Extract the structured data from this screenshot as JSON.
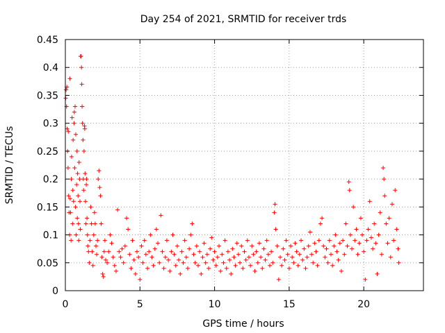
{
  "chart_data": {
    "type": "scatter",
    "title": "Day 254 of 2021, SRMTID for receiver trds",
    "xlabel": "GPS time / hours",
    "ylabel": "SRMTID / TECUs",
    "xlim": [
      0,
      24
    ],
    "ylim": [
      0,
      0.45
    ],
    "x_ticks": [
      0,
      5,
      10,
      15,
      20
    ],
    "x_tick_labels": [
      "0",
      "5",
      "10",
      "15",
      "20"
    ],
    "y_ticks": [
      0,
      0.05,
      0.1,
      0.15,
      0.2,
      0.25,
      0.3,
      0.35,
      0.4,
      0.45
    ],
    "y_tick_labels": [
      "0",
      "0.05",
      "0.1",
      "0.15",
      "0.2",
      "0.25",
      "0.3",
      "0.35",
      "0.4",
      "0.45"
    ],
    "grid": true,
    "marker": "+",
    "color": "#ff0000",
    "series": [
      {
        "name": "SRMTID",
        "points": [
          [
            0.02,
            0.345
          ],
          [
            0.05,
            0.36
          ],
          [
            0.08,
            0.33
          ],
          [
            0.1,
            0.365
          ],
          [
            0.12,
            0.29
          ],
          [
            0.15,
            0.25
          ],
          [
            0.18,
            0.22
          ],
          [
            0.2,
            0.285
          ],
          [
            0.22,
            0.17
          ],
          [
            0.25,
            0.14
          ],
          [
            0.28,
            0.1
          ],
          [
            0.3,
            0.38
          ],
          [
            0.32,
            0.165
          ],
          [
            0.35,
            0.14
          ],
          [
            0.38,
            0.09
          ],
          [
            0.4,
            0.2
          ],
          [
            0.42,
            0.24
          ],
          [
            0.45,
            0.31
          ],
          [
            0.48,
            0.12
          ],
          [
            0.5,
            0.18
          ],
          [
            0.52,
            0.27
          ],
          [
            0.55,
            0.16
          ],
          [
            0.58,
            0.3
          ],
          [
            0.6,
            0.32
          ],
          [
            0.62,
            0.22
          ],
          [
            0.65,
            0.33
          ],
          [
            0.68,
            0.15
          ],
          [
            0.7,
            0.28
          ],
          [
            0.72,
            0.1
          ],
          [
            0.75,
            0.19
          ],
          [
            0.78,
            0.25
          ],
          [
            0.8,
            0.13
          ],
          [
            0.82,
            0.21
          ],
          [
            0.85,
            0.17
          ],
          [
            0.88,
            0.12
          ],
          [
            0.9,
            0.09
          ],
          [
            0.92,
            0.23
          ],
          [
            0.95,
            0.2
          ],
          [
            0.98,
            0.16
          ],
          [
            1.0,
            0.11
          ],
          [
            1.02,
            0.42
          ],
          [
            1.05,
            0.42
          ],
          [
            1.08,
            0.4
          ],
          [
            1.1,
            0.37
          ],
          [
            1.12,
            0.33
          ],
          [
            1.15,
            0.3
          ],
          [
            1.18,
            0.27
          ],
          [
            1.2,
            0.2
          ],
          [
            1.22,
            0.18
          ],
          [
            1.25,
            0.25
          ],
          [
            1.28,
            0.295
          ],
          [
            1.3,
            0.29
          ],
          [
            1.32,
            0.21
          ],
          [
            1.35,
            0.16
          ],
          [
            1.38,
            0.12
          ],
          [
            1.4,
            0.19
          ],
          [
            1.42,
            0.2
          ],
          [
            1.45,
            0.13
          ],
          [
            1.48,
            0.1
          ],
          [
            1.5,
            0.08
          ],
          [
            1.55,
            0.07
          ],
          [
            1.6,
            0.05
          ],
          [
            1.65,
            0.09
          ],
          [
            1.7,
            0.15
          ],
          [
            1.75,
            0.12
          ],
          [
            1.8,
            0.07
          ],
          [
            1.85,
            0.045
          ],
          [
            1.9,
            0.1
          ],
          [
            1.95,
            0.14
          ],
          [
            2.0,
            0.12
          ],
          [
            2.05,
            0.08
          ],
          [
            2.1,
            0.065
          ],
          [
            2.15,
            0.09
          ],
          [
            2.2,
            0.2
          ],
          [
            2.25,
            0.215
          ],
          [
            2.3,
            0.185
          ],
          [
            2.35,
            0.17
          ],
          [
            2.4,
            0.12
          ],
          [
            2.45,
            0.06
          ],
          [
            2.5,
            0.03
          ],
          [
            2.55,
            0.025
          ],
          [
            2.6,
            0.07
          ],
          [
            2.65,
            0.09
          ],
          [
            2.7,
            0.055
          ],
          [
            2.8,
            0.05
          ],
          [
            2.9,
            0.07
          ],
          [
            3.0,
            0.1
          ],
          [
            3.1,
            0.085
          ],
          [
            3.2,
            0.06
          ],
          [
            3.3,
            0.045
          ],
          [
            3.4,
            0.035
          ],
          [
            3.5,
            0.145
          ],
          [
            3.6,
            0.07
          ],
          [
            3.7,
            0.06
          ],
          [
            3.8,
            0.075
          ],
          [
            3.9,
            0.05
          ],
          [
            4.0,
            0.08
          ],
          [
            4.1,
            0.13
          ],
          [
            4.2,
            0.11
          ],
          [
            4.3,
            0.065
          ],
          [
            4.4,
            0.04
          ],
          [
            4.5,
            0.09
          ],
          [
            4.6,
            0.055
          ],
          [
            4.7,
            0.03
          ],
          [
            4.8,
            0.07
          ],
          [
            4.9,
            0.06
          ],
          [
            5.0,
            0.02
          ],
          [
            5.1,
            0.08
          ],
          [
            5.2,
            0.05
          ],
          [
            5.3,
            0.09
          ],
          [
            5.4,
            0.065
          ],
          [
            5.5,
            0.04
          ],
          [
            5.6,
            0.07
          ],
          [
            5.7,
            0.1
          ],
          [
            5.8,
            0.06
          ],
          [
            5.9,
            0.045
          ],
          [
            6.0,
            0.075
          ],
          [
            6.1,
            0.11
          ],
          [
            6.2,
            0.085
          ],
          [
            6.3,
            0.05
          ],
          [
            6.4,
            0.135
          ],
          [
            6.5,
            0.07
          ],
          [
            6.6,
            0.04
          ],
          [
            6.7,
            0.06
          ],
          [
            6.8,
            0.09
          ],
          [
            6.9,
            0.055
          ],
          [
            7.0,
            0.035
          ],
          [
            7.1,
            0.07
          ],
          [
            7.2,
            0.1
          ],
          [
            7.3,
            0.065
          ],
          [
            7.4,
            0.045
          ],
          [
            7.5,
            0.08
          ],
          [
            7.6,
            0.055
          ],
          [
            7.7,
            0.03
          ],
          [
            7.8,
            0.07
          ],
          [
            7.9,
            0.05
          ],
          [
            8.0,
            0.09
          ],
          [
            8.1,
            0.06
          ],
          [
            8.2,
            0.04
          ],
          [
            8.3,
            0.075
          ],
          [
            8.4,
            0.1
          ],
          [
            8.5,
            0.12
          ],
          [
            8.6,
            0.065
          ],
          [
            8.7,
            0.05
          ],
          [
            8.8,
            0.08
          ],
          [
            8.9,
            0.045
          ],
          [
            9.0,
            0.07
          ],
          [
            9.1,
            0.03
          ],
          [
            9.2,
            0.06
          ],
          [
            9.3,
            0.085
          ],
          [
            9.4,
            0.05
          ],
          [
            9.5,
            0.065
          ],
          [
            9.6,
            0.04
          ],
          [
            9.7,
            0.075
          ],
          [
            9.8,
            0.095
          ],
          [
            9.9,
            0.055
          ],
          [
            10.0,
            0.07
          ],
          [
            10.1,
            0.045
          ],
          [
            10.2,
            0.06
          ],
          [
            10.3,
            0.08
          ],
          [
            10.4,
            0.035
          ],
          [
            10.5,
            0.065
          ],
          [
            10.6,
            0.05
          ],
          [
            10.7,
            0.09
          ],
          [
            10.8,
            0.04
          ],
          [
            10.9,
            0.07
          ],
          [
            11.0,
            0.055
          ],
          [
            11.1,
            0.03
          ],
          [
            11.2,
            0.075
          ],
          [
            11.3,
            0.06
          ],
          [
            11.4,
            0.045
          ],
          [
            11.5,
            0.085
          ],
          [
            11.6,
            0.065
          ],
          [
            11.7,
            0.05
          ],
          [
            11.8,
            0.08
          ],
          [
            11.9,
            0.04
          ],
          [
            12.0,
            0.07
          ],
          [
            12.1,
            0.055
          ],
          [
            12.2,
            0.09
          ],
          [
            12.3,
            0.06
          ],
          [
            12.4,
            0.045
          ],
          [
            12.5,
            0.08
          ],
          [
            12.6,
            0.065
          ],
          [
            12.7,
            0.035
          ],
          [
            12.8,
            0.07
          ],
          [
            12.9,
            0.05
          ],
          [
            13.0,
            0.085
          ],
          [
            13.1,
            0.06
          ],
          [
            13.2,
            0.04
          ],
          [
            13.3,
            0.075
          ],
          [
            13.4,
            0.055
          ],
          [
            13.5,
            0.09
          ],
          [
            13.6,
            0.065
          ],
          [
            13.7,
            0.045
          ],
          [
            13.8,
            0.07
          ],
          [
            13.9,
            0.05
          ],
          [
            14.0,
            0.14
          ],
          [
            14.05,
            0.155
          ],
          [
            14.1,
            0.11
          ],
          [
            14.2,
            0.08
          ],
          [
            14.3,
            0.02
          ],
          [
            14.4,
            0.06
          ],
          [
            14.5,
            0.045
          ],
          [
            14.6,
            0.075
          ],
          [
            14.7,
            0.055
          ],
          [
            14.8,
            0.09
          ],
          [
            14.9,
            0.065
          ],
          [
            15.0,
            0.04
          ],
          [
            15.1,
            0.08
          ],
          [
            15.2,
            0.06
          ],
          [
            15.3,
            0.05
          ],
          [
            15.4,
            0.085
          ],
          [
            15.5,
            0.07
          ],
          [
            15.6,
            0.045
          ],
          [
            15.7,
            0.065
          ],
          [
            15.8,
            0.09
          ],
          [
            15.9,
            0.055
          ],
          [
            16.0,
            0.075
          ],
          [
            16.1,
            0.04
          ],
          [
            16.2,
            0.06
          ],
          [
            16.3,
            0.08
          ],
          [
            16.4,
            0.105
          ],
          [
            16.5,
            0.065
          ],
          [
            16.6,
            0.05
          ],
          [
            16.7,
            0.085
          ],
          [
            16.8,
            0.07
          ],
          [
            16.9,
            0.045
          ],
          [
            17.0,
            0.09
          ],
          [
            17.1,
            0.12
          ],
          [
            17.2,
            0.13
          ],
          [
            17.3,
            0.08
          ],
          [
            17.4,
            0.06
          ],
          [
            17.5,
            0.075
          ],
          [
            17.6,
            0.05
          ],
          [
            17.7,
            0.09
          ],
          [
            17.8,
            0.065
          ],
          [
            17.9,
            0.045
          ],
          [
            18.0,
            0.08
          ],
          [
            18.1,
            0.1
          ],
          [
            18.2,
            0.07
          ],
          [
            18.3,
            0.055
          ],
          [
            18.4,
            0.085
          ],
          [
            18.5,
            0.035
          ],
          [
            18.6,
            0.09
          ],
          [
            18.7,
            0.065
          ],
          [
            18.8,
            0.12
          ],
          [
            18.9,
            0.08
          ],
          [
            19.0,
            0.195
          ],
          [
            19.05,
            0.18
          ],
          [
            19.1,
            0.1
          ],
          [
            19.2,
            0.075
          ],
          [
            19.3,
            0.15
          ],
          [
            19.4,
            0.09
          ],
          [
            19.5,
            0.11
          ],
          [
            19.6,
            0.065
          ],
          [
            19.7,
            0.085
          ],
          [
            19.8,
            0.13
          ],
          [
            19.9,
            0.1
          ],
          [
            20.0,
            0.07
          ],
          [
            20.1,
            0.02
          ],
          [
            20.2,
            0.09
          ],
          [
            20.3,
            0.11
          ],
          [
            20.4,
            0.16
          ],
          [
            20.5,
            0.095
          ],
          [
            20.6,
            0.075
          ],
          [
            20.7,
            0.12
          ],
          [
            20.8,
            0.085
          ],
          [
            20.9,
            0.03
          ],
          [
            21.0,
            0.1
          ],
          [
            21.1,
            0.14
          ],
          [
            21.2,
            0.065
          ],
          [
            21.3,
            0.22
          ],
          [
            21.35,
            0.2
          ],
          [
            21.4,
            0.17
          ],
          [
            21.5,
            0.12
          ],
          [
            21.6,
            0.085
          ],
          [
            21.7,
            0.13
          ],
          [
            21.8,
            0.06
          ],
          [
            21.9,
            0.155
          ],
          [
            22.0,
            0.09
          ],
          [
            22.1,
            0.18
          ],
          [
            22.2,
            0.11
          ],
          [
            22.3,
            0.075
          ],
          [
            22.35,
            0.05
          ]
        ]
      }
    ]
  }
}
